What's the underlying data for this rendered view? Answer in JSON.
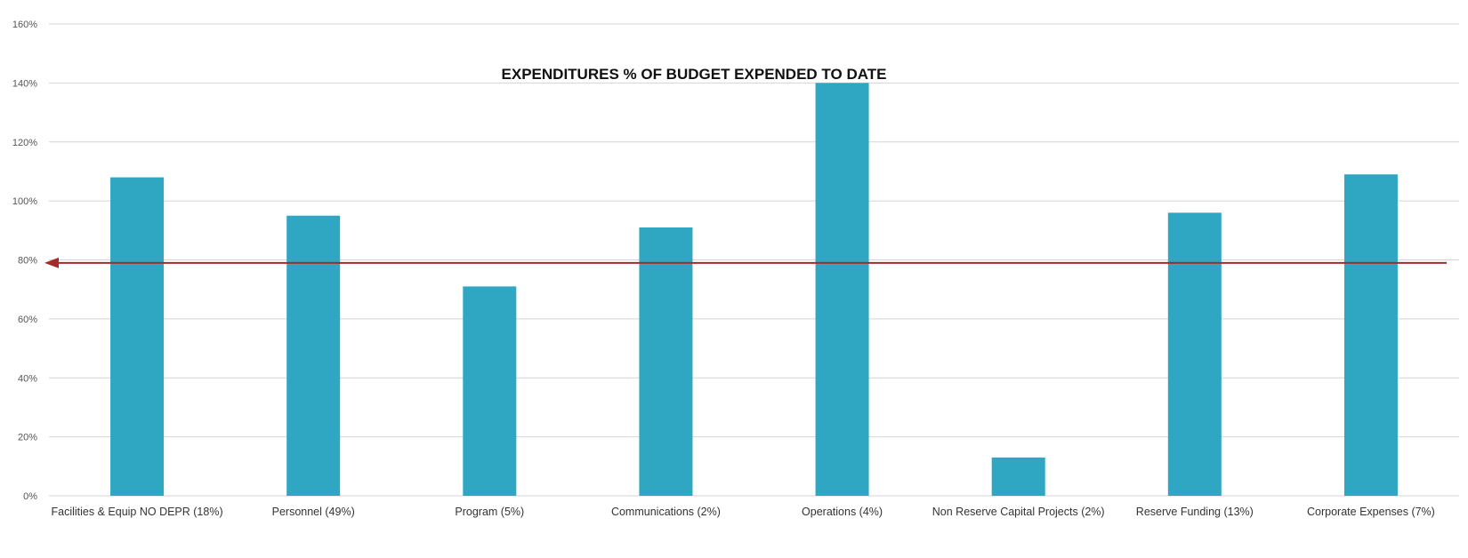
{
  "chart_data": {
    "type": "bar",
    "title": "EXPENDITURES % OF BUDGET EXPENDED TO DATE",
    "xlabel": "",
    "ylabel": "",
    "categories": [
      "Facilities & Equip NO DEPR (18%)",
      "Personnel (49%)",
      "Program (5%)",
      "Communications (2%)",
      "Operations (4%)",
      "Non Reserve Capital Projects (2%)",
      "Reserve Funding (13%)",
      "Corporate Expenses (7%)"
    ],
    "values": [
      108,
      95,
      71,
      91,
      140,
      13,
      96,
      109
    ],
    "ylim": [
      0,
      160
    ],
    "yticks": [
      0,
      20,
      40,
      60,
      80,
      100,
      120,
      140,
      160
    ],
    "ytick_labels": [
      "0%",
      "20%",
      "40%",
      "60%",
      "80%",
      "100%",
      "120%",
      "140%",
      "160%"
    ],
    "grid": true,
    "legend": "none",
    "reference_line": {
      "value": 79,
      "direction": "arrow-left"
    },
    "colors": {
      "bar": "#2fa6c2",
      "reference_line": "#a52a2a",
      "grid": "#d4d4d4"
    }
  }
}
